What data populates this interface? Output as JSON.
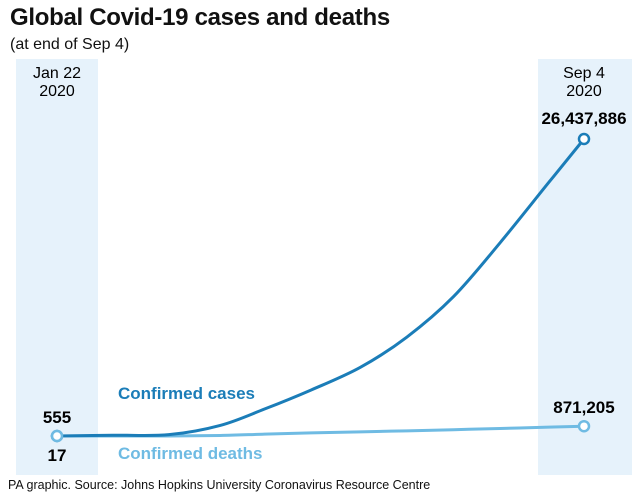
{
  "header": {
    "title": "Global Covid-19 cases and deaths",
    "subtitle": "(at end of Sep 4)"
  },
  "footer": {
    "source": "PA graphic. Source: Johns Hopkins University Coronavirus Resource Centre"
  },
  "colors": {
    "background": "#ffffff",
    "band": "#e6f2fb",
    "cases": "#1b7db8",
    "deaths": "#6fbbe3",
    "text": "#111111"
  },
  "chart_data": {
    "type": "line",
    "title": "Global Covid-19 cases and deaths",
    "subtitle": "(at end of Sep 4)",
    "x_start_label": [
      "Jan 22",
      "2020"
    ],
    "x_end_label": [
      "Sep 4",
      "2020"
    ],
    "x": [
      "2020-01-22",
      "2020-02-15",
      "2020-03-10",
      "2020-04-01",
      "2020-04-20",
      "2020-05-10",
      "2020-05-31",
      "2020-06-20",
      "2020-07-10",
      "2020-07-30",
      "2020-08-20",
      "2020-09-04"
    ],
    "series": [
      {
        "name": "Confirmed cases",
        "values": [
          555,
          70000,
          120000,
          940000,
          2400000,
          4100000,
          6100000,
          8800000,
          12400000,
          17200000,
          22600000,
          26437886
        ],
        "end_labels": {
          "start": "555",
          "end": "26,437,886"
        }
      },
      {
        "name": "Confirmed deaths",
        "values": [
          17,
          2000,
          4300,
          48000,
          165000,
          280000,
          370000,
          460000,
          560000,
          670000,
          790000,
          871205
        ],
        "end_labels": {
          "start": "17",
          "end": "871,205"
        }
      }
    ],
    "grid": false,
    "legend": "inline"
  }
}
